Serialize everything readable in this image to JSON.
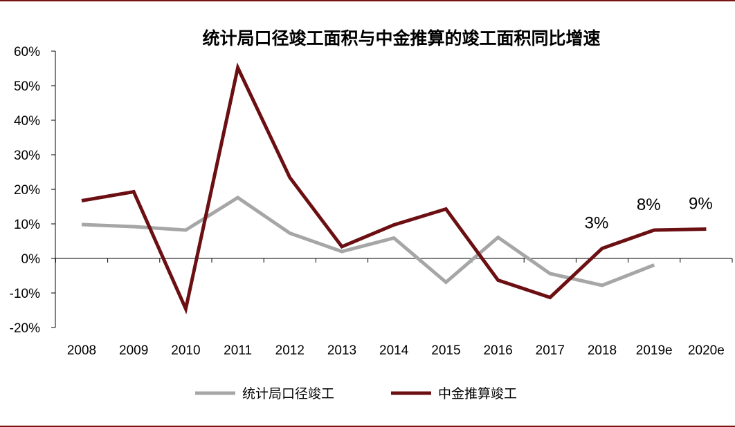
{
  "chart_data": {
    "type": "line",
    "title": "统计局口径竣工面积与中金推算的竣工面积同比增速",
    "xlabel": "",
    "ylabel": "",
    "categories": [
      "2008",
      "2009",
      "2010",
      "2011",
      "2012",
      "2013",
      "2014",
      "2015",
      "2016",
      "2017",
      "2018",
      "2019e",
      "2020e"
    ],
    "ylim": [
      -20,
      60
    ],
    "yticks": [
      -20,
      -10,
      0,
      10,
      20,
      30,
      40,
      50,
      60
    ],
    "ytick_labels": [
      "-20%",
      "-10%",
      "0%",
      "10%",
      "20%",
      "30%",
      "40%",
      "50%",
      "60%"
    ],
    "grid": false,
    "legend_position": "bottom",
    "series": [
      {
        "name": "统计局口径竣工",
        "color": "#a6a6a6",
        "values": [
          9.8,
          9.2,
          8.2,
          17.6,
          7.3,
          2.0,
          5.9,
          -6.9,
          6.1,
          -4.4,
          -7.8,
          -1.9,
          null
        ]
      },
      {
        "name": "中金推算竣工",
        "color": "#6b0f12",
        "values": [
          16.7,
          19.3,
          -14.6,
          55.2,
          23.4,
          3.4,
          9.7,
          14.3,
          -6.3,
          -11.3,
          2.9,
          8.2,
          8.5
        ]
      }
    ],
    "annotations": [
      {
        "category": "2018",
        "value": 2.9,
        "text": "3%"
      },
      {
        "category": "2019e",
        "value": 8.2,
        "text": "8%"
      },
      {
        "category": "2020e",
        "value": 8.5,
        "text": "9%"
      }
    ]
  },
  "colors": {
    "frame": "#7a1414",
    "axis": "#000000"
  }
}
